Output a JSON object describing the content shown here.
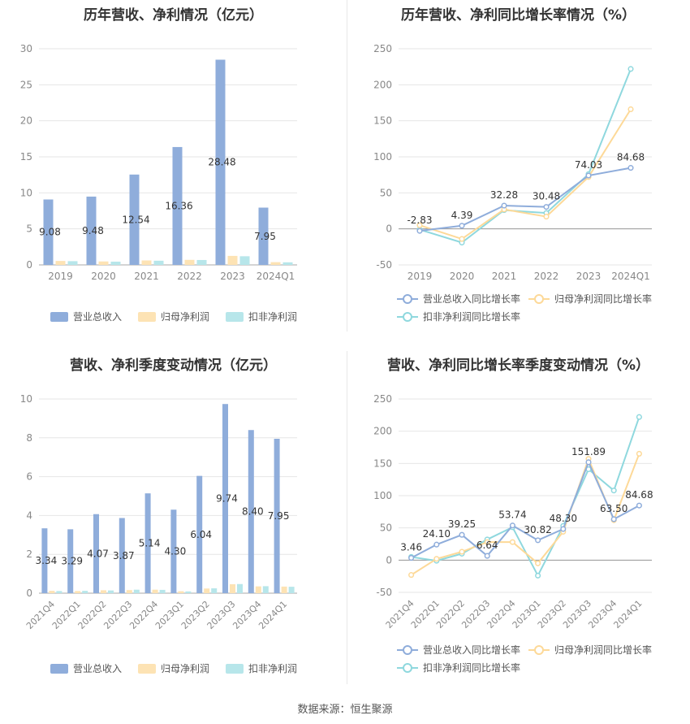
{
  "source": "数据来源：恒生聚源",
  "colors": {
    "revenue": "#8faddb",
    "net": "#fde3b4",
    "deducted": "#b7e6ea",
    "rev_line": "#8faddb",
    "net_line": "#fdd998",
    "ded_line": "#8fd8de",
    "grid": "#e6e6e6",
    "axis_text": "#888888",
    "label": "#333333"
  },
  "chart_data": [
    {
      "type": "bar",
      "title": "历年营收、净利情况（亿元）",
      "categories": [
        "2019",
        "2020",
        "2021",
        "2022",
        "2023",
        "2024Q1"
      ],
      "ylim": [
        0,
        30
      ],
      "yticks": [
        0,
        5,
        10,
        15,
        20,
        25,
        30
      ],
      "series": [
        {
          "name": "营业总收入",
          "values": [
            9.08,
            9.48,
            12.54,
            16.36,
            28.48,
            7.95
          ]
        },
        {
          "name": "归母净利润",
          "values": [
            0.55,
            0.48,
            0.62,
            0.7,
            1.25,
            0.38
          ]
        },
        {
          "name": "扣非净利润",
          "values": [
            0.52,
            0.45,
            0.58,
            0.68,
            1.2,
            0.36
          ]
        }
      ],
      "data_labels": [
        "9.08",
        "9.48",
        "12.54",
        "16.36",
        "28.48",
        "7.95"
      ],
      "legend": "bottom"
    },
    {
      "type": "line",
      "title": "历年营收、净利同比增长率情况（%）",
      "categories": [
        "2019",
        "2020",
        "2021",
        "2022",
        "2023",
        "2024Q1"
      ],
      "ylim": [
        -50,
        250
      ],
      "yticks": [
        -50,
        0,
        50,
        100,
        150,
        200,
        250
      ],
      "series": [
        {
          "name": "营业总收入同比增长率",
          "values": [
            -2.83,
            4.39,
            32.28,
            30.48,
            74.03,
            84.68
          ]
        },
        {
          "name": "归母净利润同比增长率",
          "values": [
            5,
            -14,
            27,
            17,
            72,
            166
          ]
        },
        {
          "name": "扣非净利润同比增长率",
          "values": [
            -1,
            -19,
            26,
            22,
            76,
            222
          ]
        }
      ],
      "data_labels": [
        "-2.83",
        "4.39",
        "32.28",
        "30.48",
        "74.03",
        "84.68"
      ],
      "legend": "bottom"
    },
    {
      "type": "bar",
      "title": "营收、净利季度变动情况（亿元）",
      "categories": [
        "2021Q4",
        "2022Q1",
        "2022Q2",
        "2022Q3",
        "2022Q4",
        "2023Q1",
        "2023Q2",
        "2023Q3",
        "2023Q4",
        "2024Q1"
      ],
      "ylim": [
        0,
        10
      ],
      "yticks": [
        0,
        2,
        4,
        6,
        8,
        10
      ],
      "series": [
        {
          "name": "营业总收入",
          "values": [
            3.34,
            3.29,
            4.07,
            3.87,
            5.14,
            4.3,
            6.04,
            9.74,
            8.4,
            7.95
          ]
        },
        {
          "name": "归母净利润",
          "values": [
            0.12,
            0.11,
            0.15,
            0.16,
            0.18,
            0.1,
            0.24,
            0.46,
            0.35,
            0.34
          ]
        },
        {
          "name": "扣非净利润",
          "values": [
            0.11,
            0.12,
            0.14,
            0.18,
            0.17,
            0.09,
            0.25,
            0.47,
            0.36,
            0.33
          ]
        }
      ],
      "data_labels": [
        "3.34",
        "3.29",
        "4.07",
        "3.87",
        "5.14",
        "4.30",
        "6.04",
        "9.74",
        "8.40",
        "7.95"
      ],
      "legend": "bottom"
    },
    {
      "type": "line",
      "title": "营收、净利同比增长率季度变动情况（%）",
      "categories": [
        "2021Q4",
        "2022Q1",
        "2022Q2",
        "2022Q3",
        "2022Q4",
        "2023Q1",
        "2023Q2",
        "2023Q3",
        "2023Q4",
        "2024Q1"
      ],
      "ylim": [
        -50,
        250
      ],
      "yticks": [
        -50,
        0,
        50,
        100,
        150,
        200,
        250
      ],
      "series": [
        {
          "name": "营业总收入同比增长率",
          "values": [
            3.46,
            24.1,
            39.25,
            6.64,
            53.74,
            30.82,
            48.3,
            151.89,
            63.5,
            84.68
          ]
        },
        {
          "name": "归母净利润同比增长率",
          "values": [
            -23,
            2,
            13,
            28,
            28,
            -5,
            44,
            157,
            62,
            165
          ]
        },
        {
          "name": "扣非净利润同比增长率",
          "values": [
            5,
            -1,
            10,
            32,
            51,
            -24,
            53,
            141,
            108,
            222
          ]
        }
      ],
      "data_labels": [
        "3.46",
        "24.10",
        "39.25",
        "6.64",
        "53.74",
        "30.82",
        "48.30",
        "151.89",
        "63.50",
        "84.68"
      ],
      "legend": "bottom"
    }
  ]
}
